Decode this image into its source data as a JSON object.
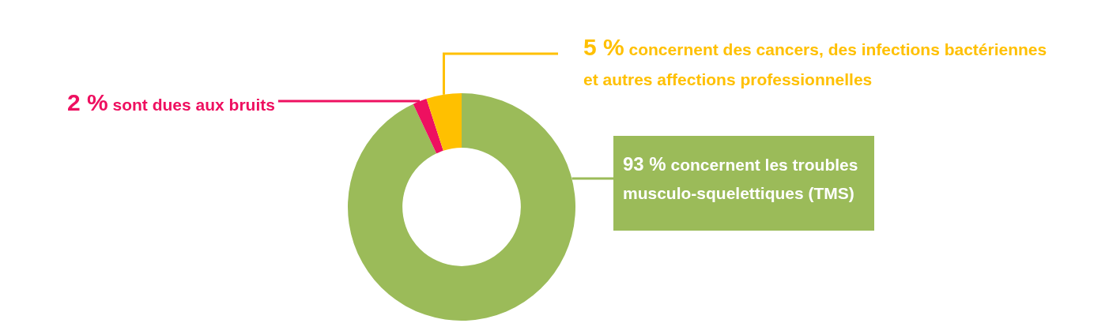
{
  "chart_data": {
    "type": "donut",
    "categories": [
      "concernent les troubles musculo-squelettiques (TMS)",
      "sont dues aux bruits",
      "concernent des cancers, des infections bactériennes et autres affections professionnelles"
    ],
    "values": [
      93,
      2,
      5
    ],
    "value_labels": [
      "93 %",
      "2 %",
      "5 %"
    ],
    "colors": [
      "#9bbb59",
      "#ee1060",
      "#ffc000"
    ],
    "legend": false
  }
}
